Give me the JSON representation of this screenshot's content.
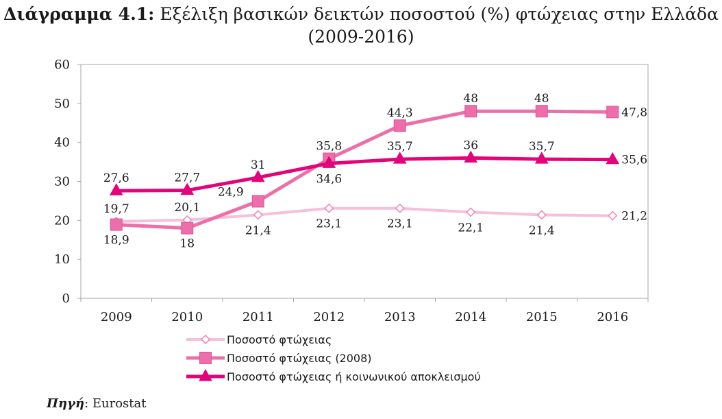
{
  "title": {
    "prefix": "Διάγραμμα 4.1:",
    "line1": "Εξέλιξη βασικών δεικτών ποσοστού (%) φτώχειας στην Ελλάδα",
    "line2": "(2009-2016)"
  },
  "source": {
    "label": "Πηγή",
    "value": ": Eurostat"
  },
  "chart_data": {
    "type": "line",
    "categories": [
      "2009",
      "2010",
      "2011",
      "2012",
      "2013",
      "2014",
      "2015",
      "2016"
    ],
    "ylim": [
      0,
      60
    ],
    "yticks": [
      0,
      10,
      20,
      30,
      40,
      50,
      60
    ],
    "grid": false,
    "legend_position": "bottom-left",
    "series": [
      {
        "name": "Ποσοστό φτώχειας",
        "values": [
          19.7,
          20.1,
          21.4,
          23.1,
          23.1,
          22.1,
          21.4,
          21.2
        ],
        "labels": [
          "19,7",
          "20,1",
          "21,4",
          "23,1",
          "23,1",
          "22,1",
          "21,4",
          "21,2"
        ],
        "color": "#f7bfd8",
        "marker": "diamond"
      },
      {
        "name": "Ποσοστό φτώχειας (2008)",
        "values": [
          18.9,
          18,
          24.9,
          35.8,
          44.3,
          48,
          48,
          47.8
        ],
        "labels": [
          "18,9",
          "18",
          "24,9",
          "35,8",
          "44,3",
          "48",
          "48",
          "47,8"
        ],
        "color": "#ec6fa9",
        "marker": "square"
      },
      {
        "name": "Ποσοστό φτώχειας ή κοινωνικού αποκλεισμού",
        "values": [
          27.6,
          27.7,
          31,
          34.6,
          35.7,
          36,
          35.7,
          35.6
        ],
        "labels": [
          "27,6",
          "27,7",
          "31",
          "34,6",
          "35,7",
          "36",
          "35,7",
          "35,6"
        ],
        "color": "#e2047a",
        "marker": "triangle"
      }
    ]
  }
}
